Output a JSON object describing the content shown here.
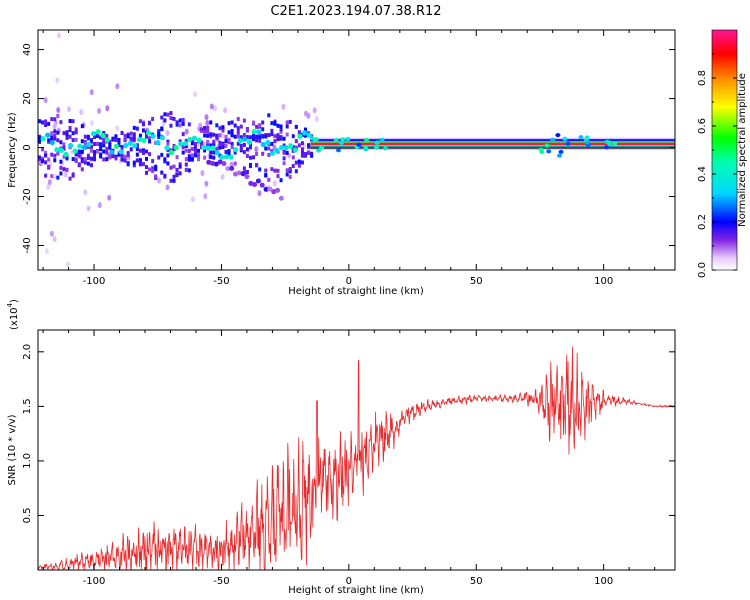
{
  "title": "C2E1.2023.194.07.38.R12",
  "colors": {
    "snr_line": "#e8282a",
    "band": "#ee1f3a",
    "axis": "#000000"
  },
  "chart_data": [
    {
      "type": "heatmap",
      "name": "spectrogram",
      "xlabel": "Height of straight line (km)",
      "ylabel": "Frequency (Hz)",
      "xlim": [
        -122,
        128
      ],
      "ylim": [
        -50,
        48
      ],
      "x_ticks": [
        -100,
        -50,
        0,
        50,
        100
      ],
      "x_tick_labels": [
        "-100",
        "-50",
        "0",
        "50",
        "100"
      ],
      "y_ticks": [
        -40,
        -20,
        0,
        20,
        40
      ],
      "y_tick_labels": [
        "-40",
        "-20",
        "0",
        "20",
        "40"
      ],
      "colorbar": {
        "label": "Normalized spectral amplitude",
        "range": [
          0,
          1
        ],
        "ticks": [
          0.0,
          0.2,
          0.4,
          0.6,
          0.8
        ],
        "tick_labels": [
          "0.0",
          "0.2",
          "0.4",
          "0.6",
          "0.8"
        ]
      },
      "dominant_frequency_hz": 1.5,
      "constant_band_start_km": -15
    },
    {
      "type": "line",
      "name": "snr",
      "xlabel": "Height of straight line (km)",
      "ylabel": "SNR (10 * v/v)",
      "y_scale_label": "(x10",
      "y_scale_exp": "4",
      "xlim": [
        -122,
        128
      ],
      "ylim": [
        0,
        2.2
      ],
      "x_ticks": [
        -100,
        -50,
        0,
        50,
        100
      ],
      "x_tick_labels": [
        "-100",
        "-50",
        "0",
        "50",
        "100"
      ],
      "y_ticks": [
        0.5,
        1.0,
        1.5,
        2.0
      ],
      "y_tick_labels": [
        "0.5",
        "1.0",
        "1.5",
        "2.0"
      ],
      "series": [
        {
          "name": "SNR",
          "x": [
            -122,
            -110,
            -100,
            -90,
            -80,
            -70,
            -60,
            -50,
            -40,
            -30,
            -25,
            -20,
            -15,
            -10,
            -5,
            0,
            5,
            10,
            15,
            20,
            25,
            30,
            40,
            50,
            60,
            70,
            75,
            80,
            85,
            90,
            95,
            100,
            105,
            110,
            115,
            120,
            128
          ],
          "mean": [
            0.02,
            0.05,
            0.09,
            0.13,
            0.18,
            0.19,
            0.18,
            0.2,
            0.3,
            0.45,
            0.55,
            0.6,
            0.7,
            0.8,
            0.85,
            0.95,
            1.05,
            1.15,
            1.25,
            1.35,
            1.45,
            1.5,
            1.55,
            1.57,
            1.57,
            1.58,
            1.55,
            1.52,
            1.52,
            1.5,
            1.52,
            1.55,
            1.55,
            1.54,
            1.52,
            1.5,
            1.5
          ],
          "amp": [
            0.02,
            0.05,
            0.1,
            0.14,
            0.22,
            0.2,
            0.18,
            0.2,
            0.3,
            0.5,
            0.55,
            0.55,
            0.45,
            0.35,
            0.4,
            0.35,
            0.3,
            0.25,
            0.2,
            0.12,
            0.08,
            0.05,
            0.04,
            0.03,
            0.03,
            0.06,
            0.1,
            0.4,
            0.5,
            0.35,
            0.2,
            0.08,
            0.04,
            0.02,
            0.01,
            0.01,
            0.01
          ]
        }
      ]
    }
  ]
}
